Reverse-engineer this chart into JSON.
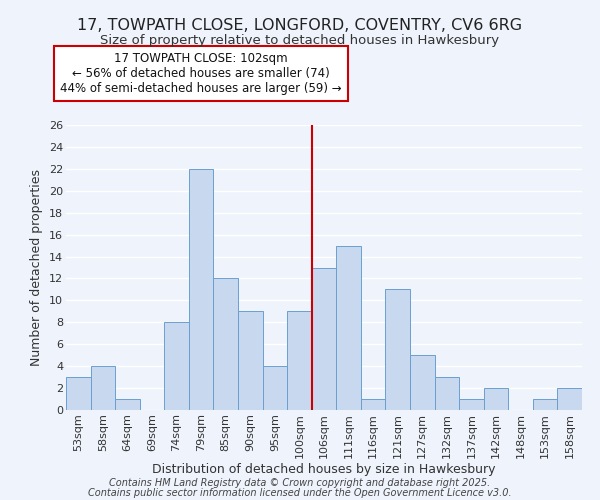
{
  "title1": "17, TOWPATH CLOSE, LONGFORD, COVENTRY, CV6 6RG",
  "title2": "Size of property relative to detached houses in Hawkesbury",
  "xlabel": "Distribution of detached houses by size in Hawkesbury",
  "ylabel": "Number of detached properties",
  "bin_labels": [
    "53sqm",
    "58sqm",
    "64sqm",
    "69sqm",
    "74sqm",
    "79sqm",
    "85sqm",
    "90sqm",
    "95sqm",
    "100sqm",
    "106sqm",
    "111sqm",
    "116sqm",
    "121sqm",
    "127sqm",
    "132sqm",
    "137sqm",
    "142sqm",
    "148sqm",
    "153sqm",
    "158sqm"
  ],
  "bar_heights": [
    3,
    4,
    1,
    0,
    8,
    22,
    12,
    9,
    4,
    9,
    13,
    15,
    1,
    11,
    5,
    3,
    1,
    2,
    0,
    1,
    2
  ],
  "bar_color": "#c8d8ef",
  "bar_edge_color": "#6a9fd0",
  "vline_x": 9.5,
  "vline_color": "#cc0000",
  "ylim": [
    0,
    26
  ],
  "yticks": [
    0,
    2,
    4,
    6,
    8,
    10,
    12,
    14,
    16,
    18,
    20,
    22,
    24,
    26
  ],
  "annotation_title": "17 TOWPATH CLOSE: 102sqm",
  "annotation_line1": "← 56% of detached houses are smaller (74)",
  "annotation_line2": "44% of semi-detached houses are larger (59) →",
  "annotation_box_edge": "#cc0000",
  "footnote1": "Contains HM Land Registry data © Crown copyright and database right 2025.",
  "footnote2": "Contains public sector information licensed under the Open Government Licence v3.0.",
  "background_color": "#eef3fc",
  "grid_color": "#ffffff",
  "title_fontsize": 11.5,
  "subtitle_fontsize": 9.5,
  "axis_label_fontsize": 9,
  "tick_fontsize": 8,
  "annotation_fontsize": 8.5,
  "footnote_fontsize": 7
}
